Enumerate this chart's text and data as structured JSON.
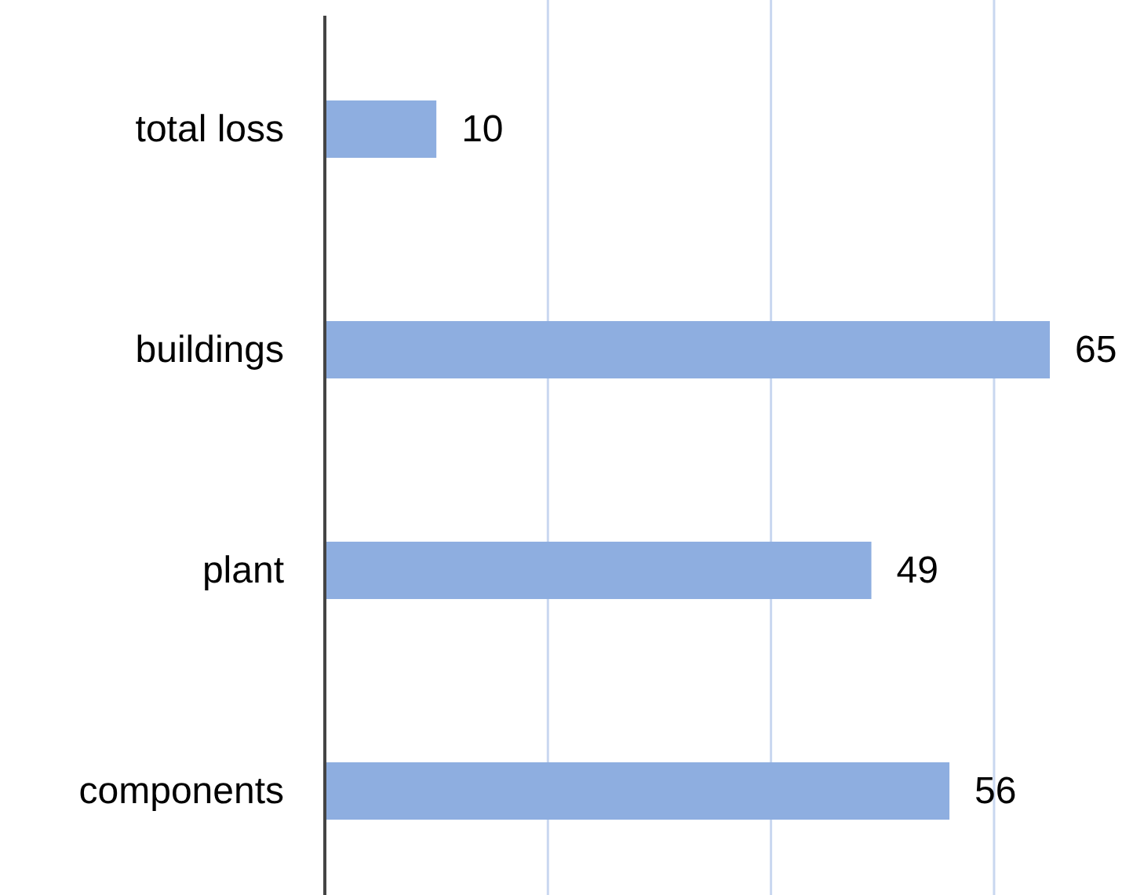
{
  "chart_data": {
    "type": "bar",
    "orientation": "horizontal",
    "categories": [
      "total loss",
      "buildings",
      "plant",
      "components"
    ],
    "values": [
      10,
      65,
      49,
      56
    ],
    "color": "#8eaee0",
    "data_labels": true,
    "xticks": [
      20,
      40,
      60
    ],
    "grid": "x",
    "tick_labels": "y"
  }
}
